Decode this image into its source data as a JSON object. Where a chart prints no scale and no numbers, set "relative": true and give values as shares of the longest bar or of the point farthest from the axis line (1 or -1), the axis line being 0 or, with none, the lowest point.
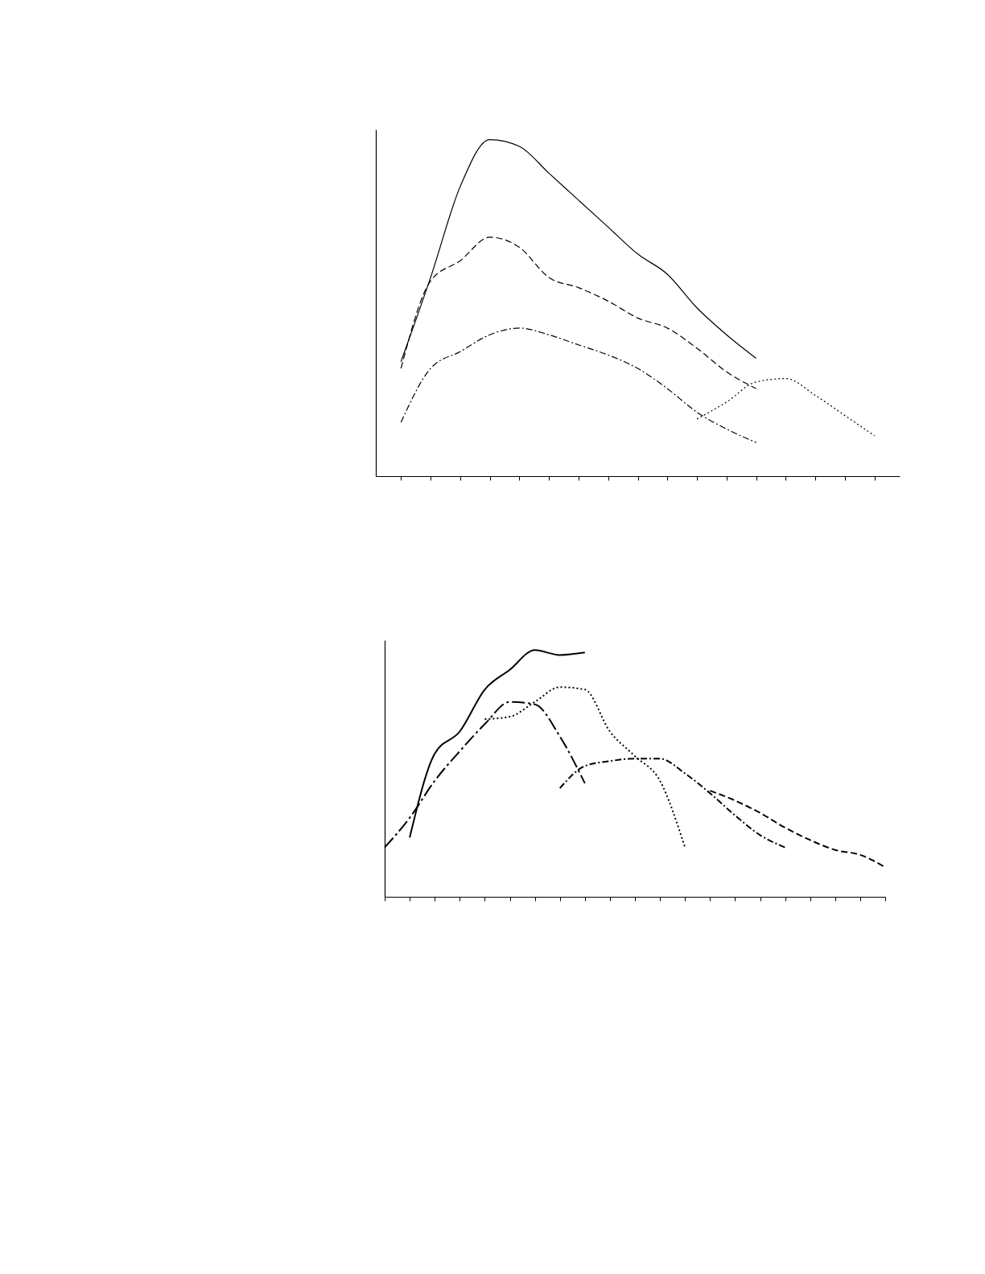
{
  "chart_data": [
    {
      "type": "line",
      "relative": true,
      "categories": [
        null,
        null,
        null,
        null,
        null,
        null,
        null,
        null,
        null,
        null,
        null,
        null,
        null,
        null,
        null,
        null,
        null
      ],
      "series": [
        {
          "color": "#000000",
          "line_style": "solid",
          "values": [
            0.34,
            0.59,
            0.86,
            1.0,
            0.98,
            0.9,
            0.82,
            0.74,
            0.66,
            0.6,
            0.5,
            0.42,
            0.35,
            null,
            null,
            null,
            null
          ]
        },
        {
          "color": "#000000",
          "line_style": "dashed",
          "values": [
            0.32,
            0.58,
            0.64,
            0.71,
            0.68,
            0.59,
            0.56,
            0.52,
            0.47,
            0.44,
            0.38,
            0.31,
            0.26,
            null,
            null,
            null,
            null
          ]
        },
        {
          "color": "#000000",
          "line_style": "dashdot",
          "values": [
            0.16,
            0.32,
            0.37,
            0.42,
            0.44,
            0.42,
            0.39,
            0.36,
            0.32,
            0.26,
            0.19,
            0.14,
            0.1,
            null,
            null,
            null,
            null
          ]
        },
        {
          "color": "#000000",
          "line_style": "dotted",
          "values": [
            null,
            null,
            null,
            null,
            null,
            null,
            null,
            null,
            null,
            null,
            0.17,
            0.22,
            0.28,
            0.29,
            0.24,
            0.18,
            0.12
          ]
        }
      ]
    },
    {
      "type": "line",
      "relative": true,
      "categories": [
        null,
        null,
        null,
        null,
        null,
        null,
        null,
        null,
        null,
        null,
        null,
        null,
        null,
        null,
        null,
        null,
        null,
        null,
        null,
        null,
        null
      ],
      "series": [
        {
          "color": "#000000",
          "line_style": "solid",
          "values": [
            null,
            0.24,
            0.58,
            0.67,
            0.84,
            0.92,
            1.0,
            0.98,
            0.99,
            null,
            null,
            null,
            null,
            null,
            null,
            null,
            null,
            null,
            null,
            null,
            null
          ]
        },
        {
          "color": "#000000",
          "line_style": "longdashdot",
          "values": [
            0.2,
            0.32,
            0.47,
            0.59,
            0.7,
            0.79,
            0.78,
            0.65,
            0.46,
            null,
            null,
            null,
            null,
            null,
            null,
            null,
            null,
            null,
            null,
            null,
            null
          ]
        },
        {
          "color": "#000000",
          "line_style": "dotted",
          "values": [
            null,
            null,
            null,
            null,
            0.72,
            0.73,
            0.79,
            0.85,
            0.84,
            0.67,
            0.57,
            0.47,
            0.2,
            null,
            null,
            null,
            null,
            null,
            null,
            null,
            null
          ]
        },
        {
          "color": "#000000",
          "line_style": "dashdot",
          "values": [
            null,
            null,
            null,
            null,
            null,
            null,
            null,
            0.44,
            0.53,
            0.55,
            0.56,
            0.56,
            0.5,
            0.42,
            0.33,
            0.25,
            0.2,
            null,
            null,
            null,
            null
          ]
        },
        {
          "color": "#000000",
          "line_style": "dashed",
          "values": [
            null,
            null,
            null,
            null,
            null,
            null,
            null,
            null,
            null,
            null,
            null,
            null,
            null,
            0.43,
            0.39,
            0.34,
            0.28,
            0.23,
            0.19,
            0.17,
            0.12
          ]
        }
      ]
    }
  ]
}
